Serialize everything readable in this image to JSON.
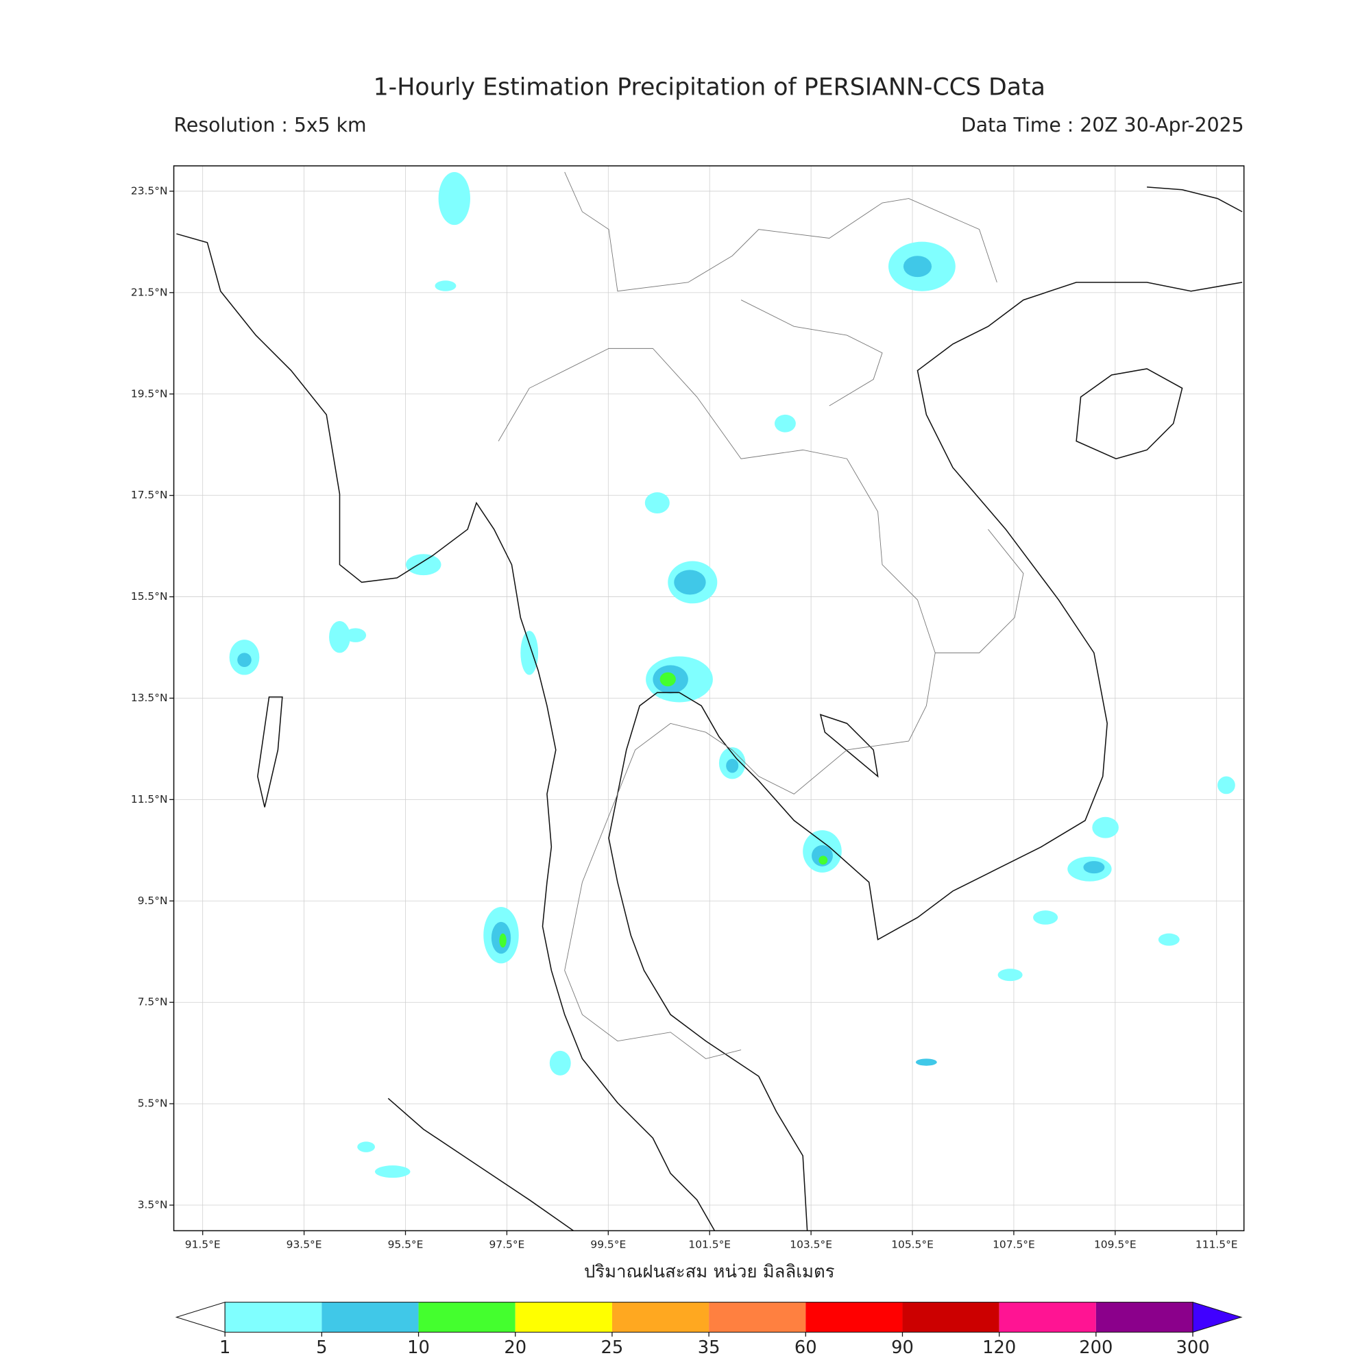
{
  "title": "1-Hourly Estimation Precipitation of PERSIANN-CCS Data",
  "subtitle_left": "Resolution : 5x5 km",
  "subtitle_right": "Data Time : 20Z 30-Apr-2025",
  "map": {
    "xlim": [
      90.93,
      112.04
    ],
    "ylim": [
      2.995,
      24.0
    ],
    "grid": true,
    "xticks": [
      {
        "value": 91.5,
        "label": "91.5°E"
      },
      {
        "value": 93.5,
        "label": "93.5°E"
      },
      {
        "value": 95.5,
        "label": "95.5°E"
      },
      {
        "value": 97.5,
        "label": "97.5°E"
      },
      {
        "value": 99.5,
        "label": "99.5°E"
      },
      {
        "value": 101.5,
        "label": "101.5°E"
      },
      {
        "value": 103.5,
        "label": "103.5°E"
      },
      {
        "value": 105.5,
        "label": "105.5°E"
      },
      {
        "value": 107.5,
        "label": "107.5°E"
      },
      {
        "value": 109.5,
        "label": "109.5°E"
      },
      {
        "value": 111.5,
        "label": "111.5°E"
      }
    ],
    "yticks": [
      {
        "value": 23.5,
        "label": "23.5°N"
      },
      {
        "value": 21.5,
        "label": "21.5°N"
      },
      {
        "value": 19.5,
        "label": "19.5°N"
      },
      {
        "value": 17.5,
        "label": "17.5°N"
      },
      {
        "value": 15.5,
        "label": "15.5°N"
      },
      {
        "value": 13.5,
        "label": "13.5°N"
      },
      {
        "value": 11.5,
        "label": "11.5°N"
      },
      {
        "value": 9.5,
        "label": "9.5°N"
      },
      {
        "value": 7.5,
        "label": "7.5°N"
      },
      {
        "value": 5.5,
        "label": "5.5°N"
      },
      {
        "value": 3.5,
        "label": "3.5°N"
      }
    ]
  },
  "colorbar": {
    "label": "ปริมาณฝนสะสม หน่วย มิลลิเมตร",
    "levels": [
      1,
      5,
      10,
      20,
      25,
      35,
      60,
      90,
      120,
      200,
      300
    ],
    "colors": [
      "#80ffff",
      "#40c8e8",
      "#44ff2e",
      "#ffff00",
      "#ffa820",
      "#ff8040",
      "#ff0000",
      "#cc0000",
      "#ff1493",
      "#8b008b"
    ],
    "under_color": "#ffffff",
    "over_color": "#4000ff"
  }
}
